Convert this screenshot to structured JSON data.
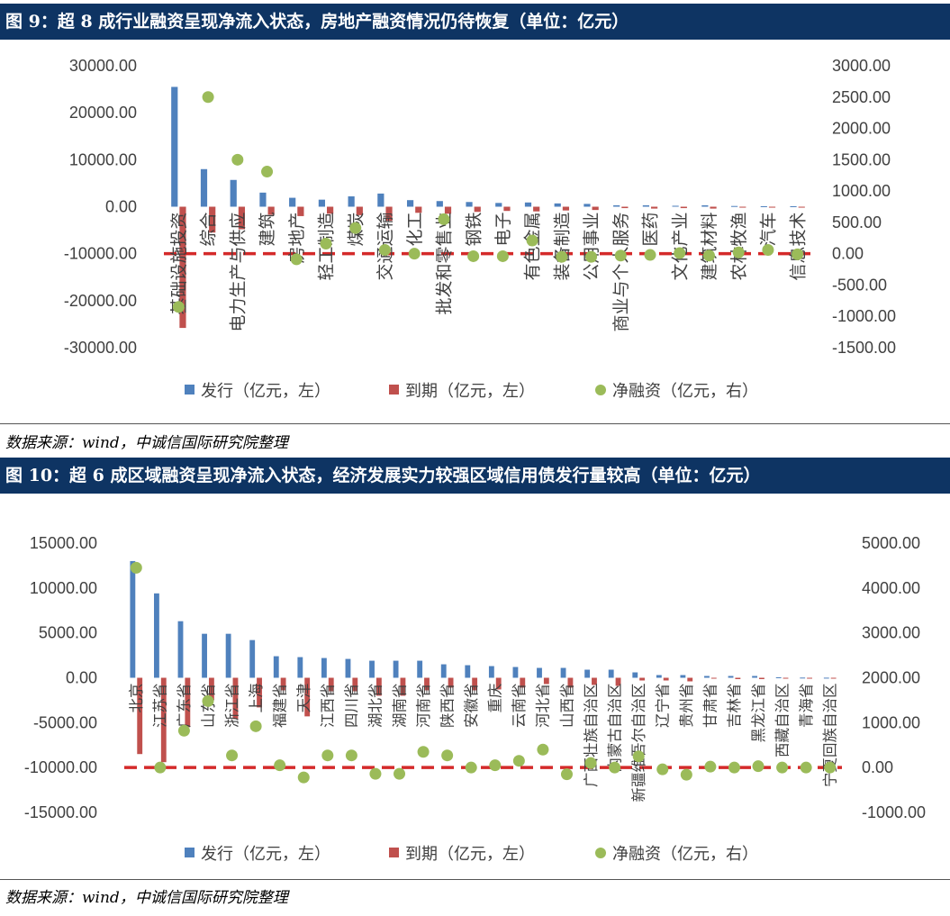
{
  "chart_data": [
    {
      "type": "bar",
      "title": "图 9：超 8 成行业融资呈现净流入状态，房地产融资情况仍待恢复（单位：亿元）",
      "source": "数据来源：wind，中诚信国际研究院整理",
      "categories": [
        "基础设施投资",
        "综合",
        "电力生产与供应",
        "建筑",
        "房地产",
        "轻工制造",
        "煤炭",
        "交通运输",
        "化工",
        "批发和零售业",
        "钢铁",
        "电子",
        "有色金属",
        "装备制造",
        "公用事业",
        "商业与个人服务",
        "医药",
        "文化产业",
        "建筑材料",
        "农林牧渔",
        "汽车",
        "信息技术"
      ],
      "series": [
        {
          "name": "发行（亿元，左）",
          "axis": "left",
          "color": "#4f81bd",
          "values": [
            25500,
            8000,
            5700,
            3000,
            1900,
            1500,
            2200,
            2800,
            1400,
            1200,
            1000,
            800,
            900,
            700,
            600,
            300,
            300,
            200,
            300,
            150,
            100,
            100
          ]
        },
        {
          "name": "到期（亿元，左）",
          "axis": "left",
          "color": "#c0504d",
          "values": [
            -25800,
            -5500,
            -4800,
            -1700,
            -2000,
            -1500,
            -1800,
            -3000,
            -1300,
            -1500,
            -1100,
            -900,
            -1000,
            -800,
            -700,
            -300,
            -400,
            -300,
            -400,
            -200,
            -200,
            -200
          ]
        },
        {
          "name": "净融资（亿元，右）",
          "axis": "right",
          "color": "#9bbb59",
          "values": [
            -850,
            2500,
            1500,
            1310,
            -90,
            160,
            410,
            60,
            0,
            550,
            -40,
            -40,
            210,
            -50,
            -50,
            -30,
            -20,
            10,
            -30,
            20,
            60,
            -10
          ]
        }
      ],
      "ylim_left": [
        -30000,
        30000
      ],
      "ylim_right": [
        -1500,
        3000
      ],
      "yticks_left": [
        "30000.00",
        "20000.00",
        "10000.00",
        "0.00",
        "-10000.00",
        "-20000.00",
        "-30000.00"
      ],
      "yticks_right": [
        "3000.00",
        "2500.00",
        "2000.00",
        "1500.00",
        "1000.00",
        "500.00",
        "0.00",
        "-500.00",
        "-1000.00",
        "-1500.00"
      ],
      "zero_line_right": 0,
      "legend": "bottom"
    },
    {
      "type": "bar",
      "title": "图 10：超 6 成区域融资呈现净流入状态，经济发展实力较强区域信用债发行量较高（单位：亿元）",
      "source": "数据来源：wind，中诚信国际研究院整理",
      "categories": [
        "北京",
        "江苏省",
        "广东省",
        "山东省",
        "浙江省",
        "上海",
        "福建省",
        "天津",
        "江西省",
        "四川省",
        "湖北省",
        "湖南省",
        "河南省",
        "陕西省",
        "安徽省",
        "重庆",
        "云南省",
        "河北省",
        "山西省",
        "广西壮族自治区",
        "内蒙古自治区",
        "新疆维吾尔自治区",
        "辽宁省",
        "贵州省",
        "甘肃省",
        "吉林省",
        "黑龙江省",
        "西藏自治区",
        "青海省",
        "宁夏回族自治区"
      ],
      "series": [
        {
          "name": "发行（亿元，左）",
          "axis": "left",
          "color": "#4f81bd",
          "values": [
            13000,
            9400,
            6300,
            4900,
            4900,
            4200,
            2400,
            2300,
            2200,
            2100,
            1900,
            1900,
            1900,
            1500,
            1400,
            1300,
            1200,
            1100,
            1100,
            900,
            900,
            600,
            300,
            300,
            200,
            200,
            200,
            50,
            20,
            10
          ]
        },
        {
          "name": "到期（亿元，左）",
          "axis": "left",
          "color": "#c0504d",
          "values": [
            -8500,
            -9400,
            -5500,
            -2500,
            -4600,
            -3300,
            -1400,
            -4300,
            -1500,
            -1500,
            -2000,
            -2000,
            -1400,
            -1100,
            -1400,
            -1300,
            -1100,
            -700,
            -1100,
            -800,
            -900,
            -300,
            -300,
            -400,
            -100,
            -150,
            -150,
            -50,
            -20,
            -10
          ]
        },
        {
          "name": "净融资（亿元，右）",
          "axis": "right",
          "color": "#9bbb59",
          "values": [
            4450,
            0,
            820,
            1480,
            270,
            920,
            50,
            -220,
            270,
            270,
            -140,
            -140,
            350,
            270,
            0,
            50,
            150,
            400,
            -150,
            100,
            0,
            250,
            -40,
            -160,
            20,
            0,
            30,
            0,
            0,
            0
          ]
        }
      ],
      "ylim_left": [
        -15000,
        15000
      ],
      "ylim_right": [
        -1000,
        5000
      ],
      "yticks_left": [
        "15000.00",
        "10000.00",
        "5000.00",
        "0.00",
        "-5000.00",
        "-10000.00",
        "-15000.00"
      ],
      "yticks_right": [
        "5000.00",
        "4000.00",
        "3000.00",
        "2000.00",
        "1000.00",
        "0.00",
        "-1000.00"
      ],
      "zero_line_right": 0,
      "legend": "bottom"
    }
  ]
}
